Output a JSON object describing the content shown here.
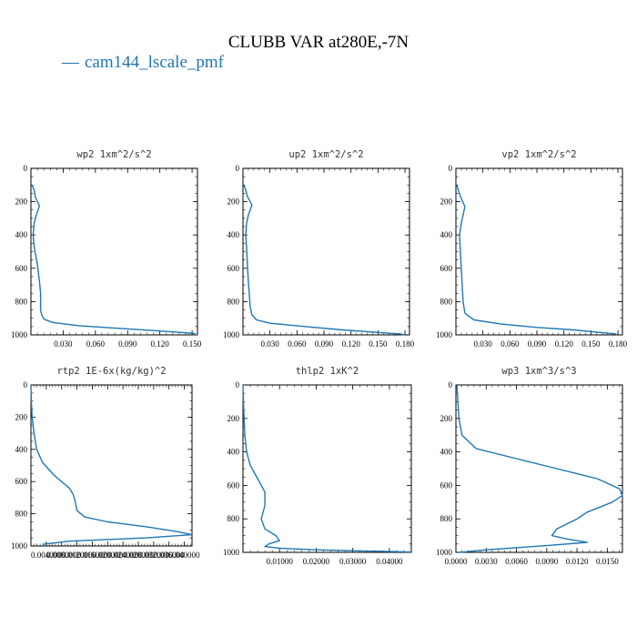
{
  "figure": {
    "title": "CLUBB VAR at280E,-7N",
    "legend_label": "cam144_lscale_pmf",
    "legend_color": "#1f77b4",
    "line_color": "#1f77b4"
  },
  "chart_data": [
    {
      "type": "line",
      "title": "wp2   1xm^2/s^2",
      "xlim": [
        0,
        0.155
      ],
      "ylim": [
        1000,
        0
      ],
      "xticks": [
        0.03,
        0.06,
        0.09,
        0.12,
        0.15
      ],
      "xtick_labels": [
        "0.030",
        "0.060",
        "0.090",
        "0.120",
        "0.150"
      ],
      "yticks": [
        0,
        200,
        400,
        600,
        800,
        1000
      ],
      "ytick_labels": [
        "0",
        "200",
        "400",
        "600",
        "800",
        "1000"
      ],
      "series": [
        {
          "x": [
            0.001,
            0.003,
            0.004,
            0.006,
            0.008,
            0.005,
            0.003,
            0.002,
            0.003,
            0.006,
            0.008,
            0.009,
            0.009,
            0.009,
            0.01,
            0.012,
            0.02,
            0.045,
            0.08,
            0.11,
            0.14,
            0.153
          ],
          "y": [
            100,
            130,
            170,
            200,
            225,
            280,
            330,
            400,
            470,
            580,
            680,
            750,
            800,
            850,
            880,
            905,
            925,
            945,
            960,
            972,
            985,
            992
          ]
        }
      ]
    },
    {
      "type": "line",
      "title": "up2   1xm^2/s^2",
      "xlim": [
        0,
        0.185
      ],
      "ylim": [
        1000,
        0
      ],
      "xticks": [
        0.03,
        0.06,
        0.09,
        0.12,
        0.15,
        0.18
      ],
      "xtick_labels": [
        "0.030",
        "0.060",
        "0.090",
        "0.120",
        "0.150",
        "0.180"
      ],
      "yticks": [
        0,
        200,
        400,
        600,
        800,
        1000
      ],
      "ytick_labels": [
        "0",
        "200",
        "400",
        "600",
        "800",
        "1000"
      ],
      "series": [
        {
          "x": [
            0.001,
            0.003,
            0.005,
            0.01,
            0.006,
            0.004,
            0.003,
            0.004,
            0.005,
            0.006,
            0.007,
            0.008,
            0.01,
            0.015,
            0.03,
            0.07,
            0.11,
            0.15,
            0.175,
            0.18
          ],
          "y": [
            100,
            130,
            170,
            220,
            280,
            330,
            400,
            480,
            580,
            680,
            750,
            830,
            880,
            910,
            930,
            950,
            970,
            985,
            995,
            1000
          ]
        }
      ]
    },
    {
      "type": "line",
      "title": "vp2   1xm^2/s^2",
      "xlim": [
        0,
        0.185
      ],
      "ylim": [
        1000,
        0
      ],
      "xticks": [
        0.03,
        0.06,
        0.09,
        0.12,
        0.15,
        0.18
      ],
      "xtick_labels": [
        "0.030",
        "0.060",
        "0.090",
        "0.120",
        "0.150",
        "0.180"
      ],
      "yticks": [
        0,
        200,
        400,
        600,
        800,
        1000
      ],
      "ytick_labels": [
        "0",
        "200",
        "400",
        "600",
        "800",
        "1000"
      ],
      "series": [
        {
          "x": [
            0.001,
            0.003,
            0.006,
            0.01,
            0.008,
            0.006,
            0.004,
            0.005,
            0.006,
            0.007,
            0.008,
            0.01,
            0.02,
            0.05,
            0.09,
            0.13,
            0.16,
            0.178
          ],
          "y": [
            100,
            140,
            180,
            230,
            280,
            330,
            400,
            500,
            600,
            700,
            800,
            870,
            910,
            935,
            955,
            970,
            985,
            995
          ]
        }
      ]
    },
    {
      "type": "line",
      "title": "rtp2   1E-6x(kg/kg)^2",
      "xlim": [
        0,
        0.042
      ],
      "ylim": [
        1000,
        0
      ],
      "xticks": [
        0.004,
        0.008,
        0.012,
        0.016,
        0.02,
        0.024,
        0.028,
        0.032,
        0.036,
        0.04
      ],
      "xtick_labels": [
        "0.004000",
        "0.008000",
        "0.012000",
        "0.016000",
        "0.020000",
        "0.024000",
        "0.028000",
        "0.032000",
        "0.036000",
        "0.040000"
      ],
      "yticks": [
        0,
        200,
        400,
        600,
        800,
        1000
      ],
      "ytick_labels": [
        "0",
        "200",
        "400",
        "600",
        "800",
        "1000"
      ],
      "series": [
        {
          "x": [
            0.0,
            0.0001,
            0.0003,
            0.0008,
            0.0015,
            0.003,
            0.006,
            0.01,
            0.011,
            0.0115,
            0.012,
            0.014,
            0.02,
            0.03,
            0.038,
            0.042,
            0.03,
            0.01,
            0.003
          ],
          "y": [
            0,
            100,
            200,
            300,
            400,
            480,
            560,
            640,
            680,
            720,
            780,
            820,
            850,
            880,
            910,
            930,
            950,
            970,
            990
          ]
        }
      ]
    },
    {
      "type": "line",
      "title": "thlp2   1xK^2",
      "xlim": [
        0,
        0.046
      ],
      "ylim": [
        1000,
        0
      ],
      "xticks": [
        0.01,
        0.02,
        0.03,
        0.04
      ],
      "xtick_labels": [
        "0.01000",
        "0.02000",
        "0.03000",
        "0.04000"
      ],
      "yticks": [
        0,
        200,
        400,
        600,
        800,
        1000
      ],
      "ytick_labels": [
        "0",
        "200",
        "400",
        "600",
        "800",
        "1000"
      ],
      "series": [
        {
          "x": [
            0.0,
            0.0002,
            0.0005,
            0.001,
            0.002,
            0.004,
            0.006,
            0.006,
            0.005,
            0.006,
            0.009,
            0.01,
            0.007,
            0.006,
            0.01,
            0.02,
            0.03,
            0.04,
            0.046
          ],
          "y": [
            0,
            150,
            300,
            400,
            480,
            560,
            640,
            720,
            800,
            860,
            900,
            930,
            950,
            965,
            975,
            985,
            990,
            995,
            998
          ]
        }
      ]
    },
    {
      "type": "line",
      "title": "wp3   1xm^3/s^3",
      "xlim": [
        0,
        0.0165
      ],
      "ylim": [
        1000,
        0
      ],
      "xticks": [
        0.0,
        0.003,
        0.006,
        0.009,
        0.012,
        0.015
      ],
      "xtick_labels": [
        "0.0000",
        "0.0030",
        "0.0060",
        "0.0090",
        "0.0120",
        "0.0150"
      ],
      "yticks": [
        0,
        200,
        400,
        600,
        800,
        1000
      ],
      "ytick_labels": [
        "0",
        "200",
        "400",
        "600",
        "800",
        "1000"
      ],
      "series": [
        {
          "x": [
            0.0001,
            0.0002,
            0.0003,
            0.0006,
            0.002,
            0.006,
            0.01,
            0.014,
            0.0162,
            0.0165,
            0.0155,
            0.013,
            0.012,
            0.01,
            0.0095,
            0.011,
            0.013,
            0.009,
            0.003,
            0.0003
          ],
          "y": [
            0,
            100,
            200,
            300,
            380,
            440,
            500,
            560,
            620,
            660,
            700,
            760,
            800,
            860,
            900,
            920,
            940,
            960,
            985,
            1000
          ]
        }
      ]
    }
  ]
}
